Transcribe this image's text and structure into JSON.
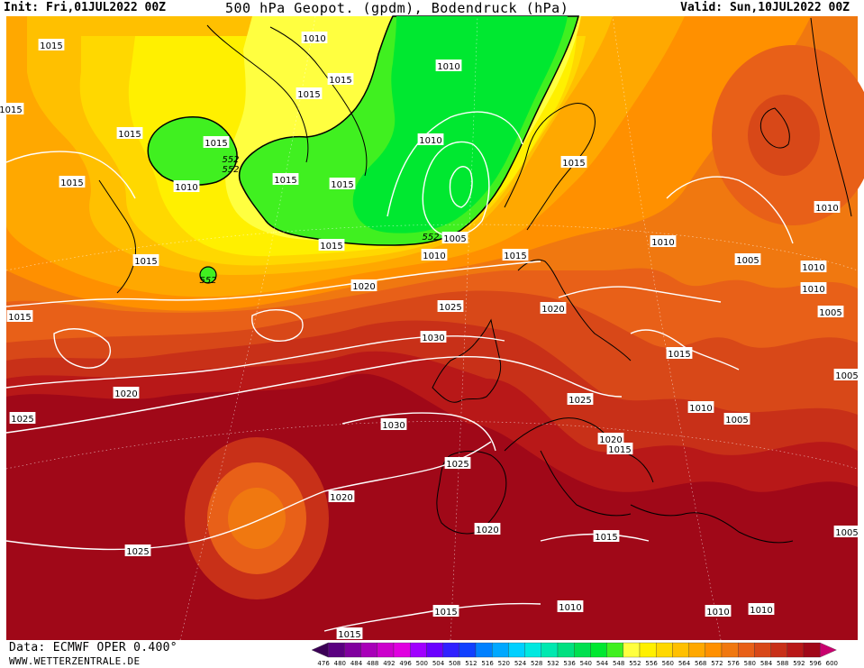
{
  "header": {
    "init": "Init: Fri,01JUL2022 00Z",
    "title": "500 hPa Geopot. (gpdm), Bodendruck (hPa)",
    "valid": "Valid: Sun,10JUL2022 00Z"
  },
  "footer": {
    "source": "Data: ECMWF OPER 0.400°",
    "site": "WWW.WETTERZENTRALE.DE"
  },
  "legend": {
    "ticks": [
      "476",
      "480",
      "484",
      "488",
      "492",
      "496",
      "500",
      "504",
      "508",
      "512",
      "516",
      "520",
      "524",
      "528",
      "532",
      "536",
      "540",
      "544",
      "548",
      "552",
      "556",
      "560",
      "564",
      "568",
      "572",
      "576",
      "580",
      "584",
      "588",
      "592",
      "596",
      "600"
    ],
    "colors": [
      "#3b0055",
      "#5a0080",
      "#80009e",
      "#a800b8",
      "#cc00cc",
      "#e000e0",
      "#a000ff",
      "#6a00ff",
      "#3020ff",
      "#1040ff",
      "#0080ff",
      "#00a8ff",
      "#00d0ff",
      "#00e8e0",
      "#00e8b0",
      "#00e080",
      "#00e050",
      "#00e830",
      "#40f020",
      "#ffff40",
      "#fff000",
      "#ffd800",
      "#ffc000",
      "#ffa800",
      "#ff9000",
      "#f07810",
      "#e86018",
      "#d84818",
      "#c83018",
      "#b81818",
      "#a00818",
      "#c8006e"
    ]
  },
  "isobars": [
    {
      "text": "1015",
      "pos": [
        57,
        50
      ]
    },
    {
      "text": "1010",
      "pos": [
        349,
        42
      ]
    },
    {
      "text": "1010",
      "pos": [
        498,
        73
      ]
    },
    {
      "text": "1015",
      "pos": [
        12,
        121
      ]
    },
    {
      "text": "1015",
      "pos": [
        343,
        104
      ]
    },
    {
      "text": "1015",
      "pos": [
        378,
        88
      ]
    },
    {
      "text": "1015",
      "pos": [
        144,
        148
      ]
    },
    {
      "text": "1015",
      "pos": [
        240,
        158
      ]
    },
    {
      "text": "1010",
      "pos": [
        478,
        155
      ]
    },
    {
      "text": "1015",
      "pos": [
        80,
        202
      ]
    },
    {
      "text": "1010",
      "pos": [
        207,
        207
      ]
    },
    {
      "text": "1015",
      "pos": [
        317,
        199
      ]
    },
    {
      "text": "1015",
      "pos": [
        380,
        204
      ]
    },
    {
      "text": "1015",
      "pos": [
        637,
        180
      ]
    },
    {
      "text": "1005",
      "pos": [
        505,
        264
      ]
    },
    {
      "text": "1015",
      "pos": [
        368,
        272
      ]
    },
    {
      "text": "1010",
      "pos": [
        482,
        283
      ]
    },
    {
      "text": "1015",
      "pos": [
        572,
        283
      ]
    },
    {
      "text": "1010",
      "pos": [
        736,
        268
      ]
    },
    {
      "text": "1010",
      "pos": [
        918,
        230
      ]
    },
    {
      "text": "1015",
      "pos": [
        162,
        289
      ]
    },
    {
      "text": "1005",
      "pos": [
        830,
        288
      ]
    },
    {
      "text": "1010",
      "pos": [
        903,
        296
      ]
    },
    {
      "text": "1020",
      "pos": [
        404,
        317
      ]
    },
    {
      "text": "1010",
      "pos": [
        903,
        320
      ]
    },
    {
      "text": "1025",
      "pos": [
        500,
        340
      ]
    },
    {
      "text": "1020",
      "pos": [
        614,
        342
      ]
    },
    {
      "text": "1015",
      "pos": [
        22,
        351
      ]
    },
    {
      "text": "1005",
      "pos": [
        922,
        346
      ]
    },
    {
      "text": "1030",
      "pos": [
        481,
        374
      ]
    },
    {
      "text": "1015",
      "pos": [
        754,
        392
      ]
    },
    {
      "text": "1020",
      "pos": [
        140,
        436
      ]
    },
    {
      "text": "1025",
      "pos": [
        644,
        443
      ]
    },
    {
      "text": "1010",
      "pos": [
        778,
        452
      ]
    },
    {
      "text": "1025",
      "pos": [
        25,
        464
      ]
    },
    {
      "text": "1005",
      "pos": [
        818,
        465
      ]
    },
    {
      "text": "1030",
      "pos": [
        437,
        471
      ]
    },
    {
      "text": "1020",
      "pos": [
        678,
        487
      ]
    },
    {
      "text": "1015",
      "pos": [
        688,
        498
      ]
    },
    {
      "text": "1025",
      "pos": [
        508,
        514
      ]
    },
    {
      "text": "1020",
      "pos": [
        379,
        551
      ]
    },
    {
      "text": "1020",
      "pos": [
        541,
        587
      ]
    },
    {
      "text": "1015",
      "pos": [
        673,
        595
      ]
    },
    {
      "text": "1025",
      "pos": [
        153,
        611
      ]
    },
    {
      "text": "1010",
      "pos": [
        633,
        673
      ]
    },
    {
      "text": "1015",
      "pos": [
        495,
        678
      ]
    },
    {
      "text": "1010",
      "pos": [
        797,
        678
      ]
    },
    {
      "text": "1010",
      "pos": [
        845,
        676
      ]
    },
    {
      "text": "1015",
      "pos": [
        388,
        703
      ]
    },
    {
      "text": "1005",
      "pos": [
        940,
        590
      ]
    },
    {
      "text": "1005",
      "pos": [
        940,
        416
      ]
    }
  ],
  "geopotential_labels": [
    {
      "text": "552",
      "pos": [
        256,
        180
      ]
    },
    {
      "text": "552",
      "pos": [
        256,
        191
      ]
    },
    {
      "text": "552",
      "pos": [
        478,
        266
      ]
    },
    {
      "text": "552",
      "pos": [
        231,
        314
      ]
    }
  ]
}
